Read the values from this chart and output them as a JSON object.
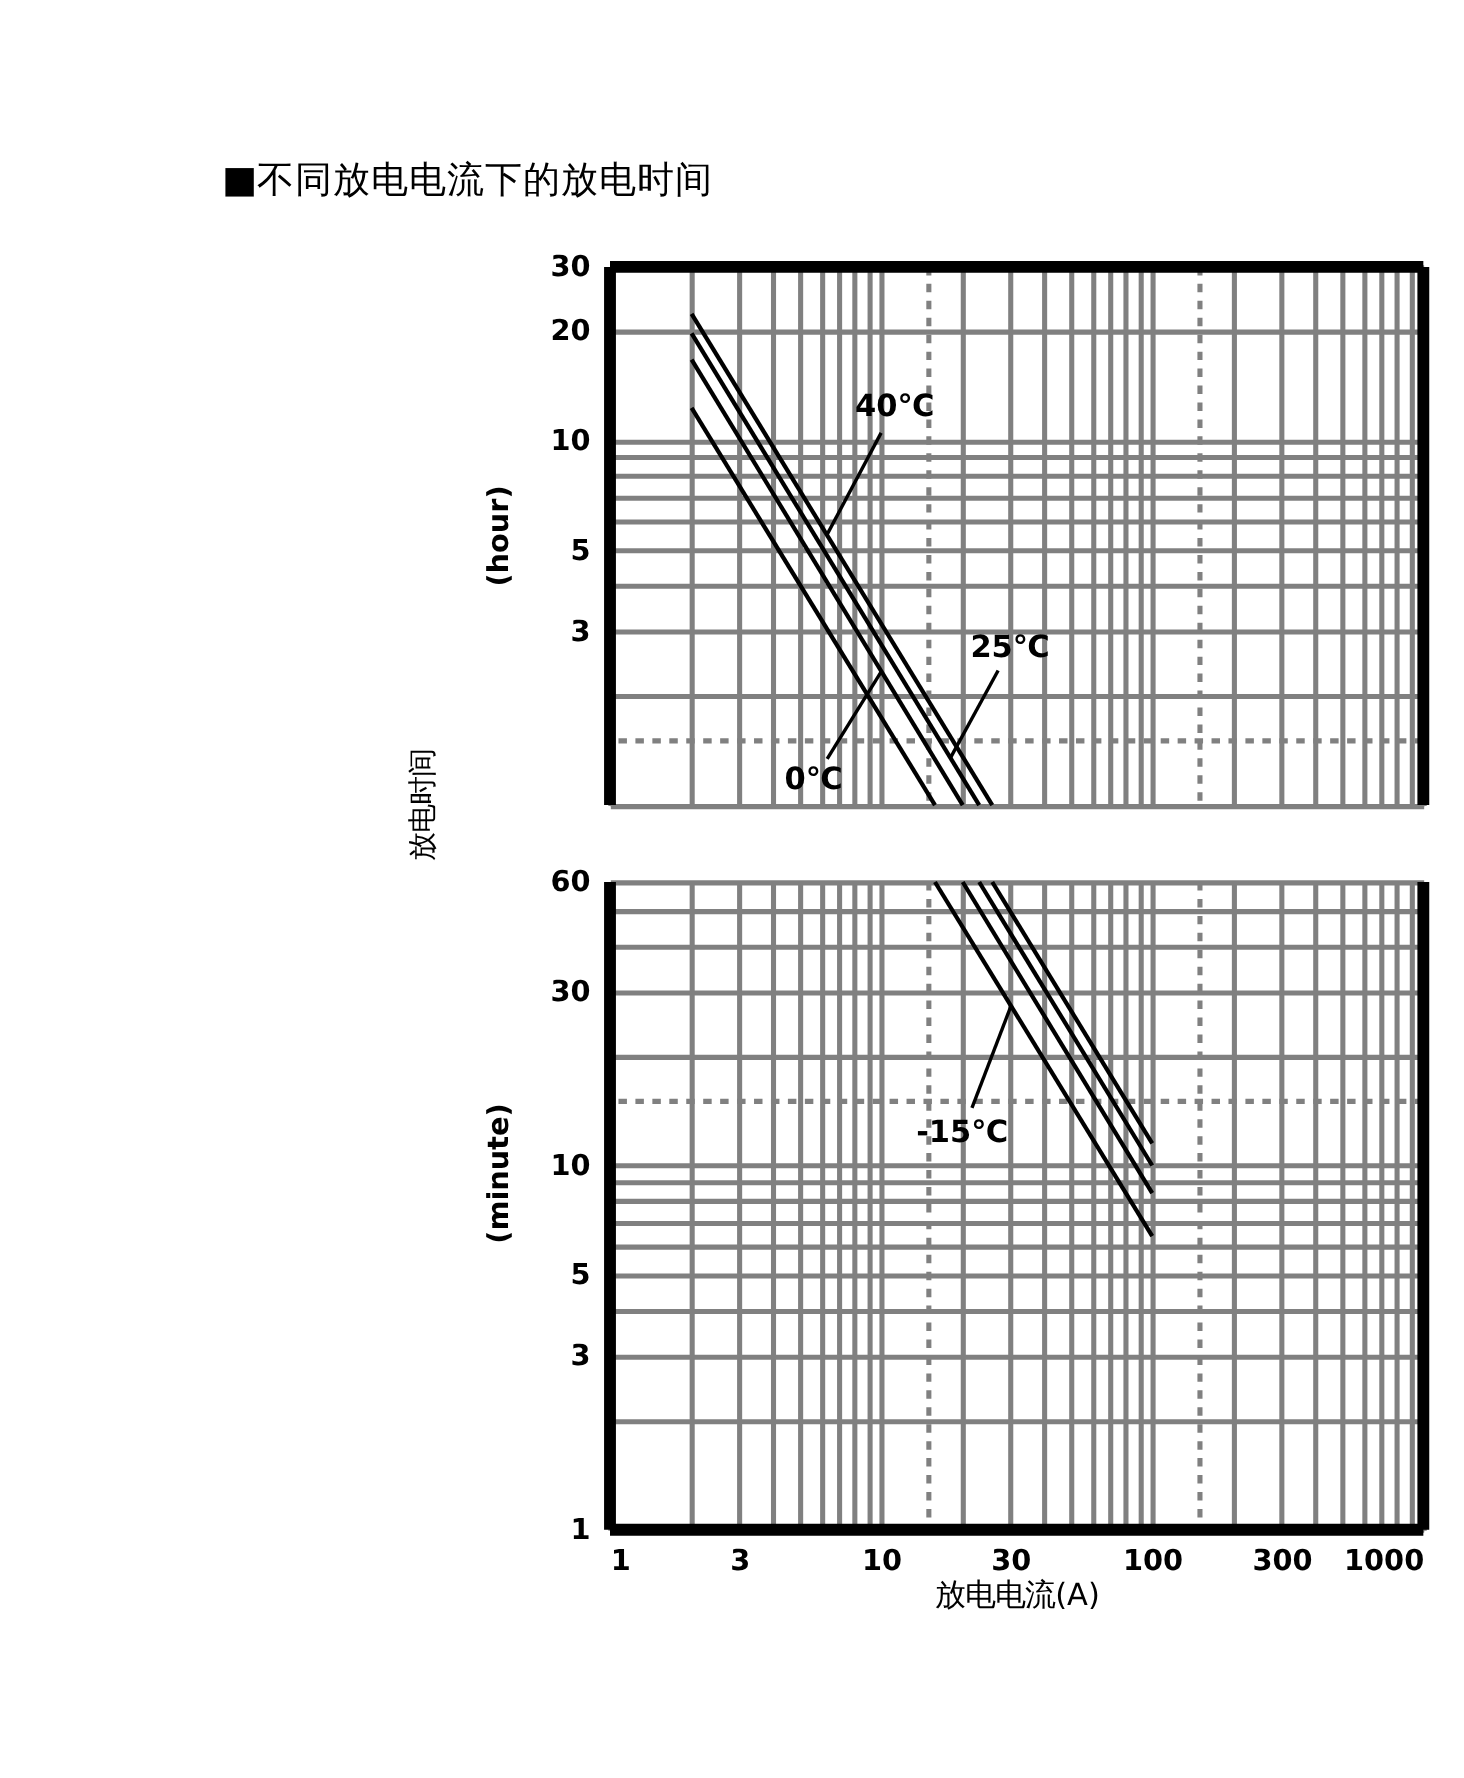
{
  "chart_data": [
    {
      "type": "line",
      "title": "■不同放电电流下的放电时间",
      "annotations": [
        "放电时间",
        "(hour)"
      ],
      "log": "xy",
      "grid": true,
      "legend": false,
      "marker": "none",
      "line_style": "solid",
      "tick_labels": "y",
      "xlim": [
        1,
        1000
      ],
      "xticks": [
        1,
        2,
        3,
        4,
        5,
        6,
        7,
        8,
        9,
        10,
        20,
        30,
        40,
        50,
        60,
        70,
        80,
        90,
        100,
        200,
        300,
        400,
        500,
        600,
        700,
        800,
        900,
        1000
      ],
      "ylim": [
        1,
        30
      ],
      "yticks": [
        {
          "value": 1,
          "label": null
        },
        {
          "value": 2,
          "label": null
        },
        3,
        {
          "value": 4,
          "label": null
        },
        5,
        {
          "value": 6,
          "label": null
        },
        {
          "value": 7,
          "label": null
        },
        {
          "value": 8,
          "label": null
        },
        {
          "value": 9,
          "label": null
        },
        10,
        20,
        30
      ],
      "ref_lines": [
        {
          "axis": "x",
          "value": 15,
          "color": "#808080",
          "line_style": "dotted"
        },
        {
          "axis": "x",
          "value": 150,
          "color": "#808080",
          "line_style": "dotted"
        },
        {
          "axis": "y",
          "value": 1.5,
          "color": "#808080",
          "line_style": "dotted"
        }
      ],
      "series": [
        {
          "name": "40℃",
          "color": "#000000",
          "x": [
            2,
            25.7
          ],
          "values": [
            22.3,
            1
          ]
        },
        {
          "name": "25℃",
          "color": "#000000",
          "x": [
            2,
            23
          ],
          "values": [
            19.7,
            1
          ]
        },
        {
          "name": "0℃",
          "color": "#000000",
          "x": [
            2,
            20
          ],
          "values": [
            16.7,
            1
          ]
        },
        {
          "color": "#000000",
          "x": [
            2,
            15.8
          ],
          "values": [
            12.3,
            1
          ]
        }
      ]
    },
    {
      "type": "line",
      "xlabel": "放电电流(A)",
      "annotations": [
        "(minute)"
      ],
      "log": "xy",
      "grid": true,
      "legend": false,
      "marker": "none",
      "line_style": "solid",
      "xlim": [
        1,
        1000
      ],
      "xticks": [
        1,
        {
          "value": 2,
          "label": null
        },
        3,
        {
          "value": 4,
          "label": null
        },
        {
          "value": 5,
          "label": null
        },
        {
          "value": 6,
          "label": null
        },
        {
          "value": 7,
          "label": null
        },
        {
          "value": 8,
          "label": null
        },
        {
          "value": 9,
          "label": null
        },
        10,
        {
          "value": 20,
          "label": null
        },
        30,
        {
          "value": 40,
          "label": null
        },
        {
          "value": 50,
          "label": null
        },
        {
          "value": 60,
          "label": null
        },
        {
          "value": 70,
          "label": null
        },
        {
          "value": 80,
          "label": null
        },
        {
          "value": 90,
          "label": null
        },
        100,
        {
          "value": 200,
          "label": null
        },
        300,
        {
          "value": 400,
          "label": null
        },
        {
          "value": 500,
          "label": null
        },
        {
          "value": 600,
          "label": null
        },
        {
          "value": 700,
          "label": null
        },
        {
          "value": 800,
          "label": null
        },
        {
          "value": 900,
          "label": null
        },
        1000
      ],
      "ylim": [
        1,
        60
      ],
      "yticks": [
        1,
        {
          "value": 2,
          "label": null
        },
        3,
        {
          "value": 4,
          "label": null
        },
        5,
        {
          "value": 6,
          "label": null
        },
        {
          "value": 7,
          "label": null
        },
        {
          "value": 8,
          "label": null
        },
        {
          "value": 9,
          "label": null
        },
        10,
        {
          "value": 20,
          "label": null
        },
        30,
        {
          "value": 40,
          "label": null
        },
        {
          "value": 50,
          "label": null
        },
        60
      ],
      "ref_lines": [
        {
          "axis": "x",
          "value": 15,
          "color": "#808080",
          "line_style": "dotted"
        },
        {
          "axis": "x",
          "value": 150,
          "color": "#808080",
          "line_style": "dotted"
        },
        {
          "axis": "y",
          "value": 15,
          "color": "#808080",
          "line_style": "dotted"
        }
      ],
      "series": [
        {
          "color": "#000000",
          "x": [
            25.7,
            100
          ],
          "values": [
            60,
            11.5
          ]
        },
        {
          "color": "#000000",
          "x": [
            23,
            100
          ],
          "values": [
            60,
            10
          ]
        },
        {
          "color": "#000000",
          "x": [
            20,
            100
          ],
          "values": [
            60,
            8.4
          ]
        },
        {
          "name": "-15℃",
          "color": "#000000",
          "x": [
            15.8,
            100
          ],
          "values": [
            60,
            6.4
          ]
        }
      ]
    }
  ]
}
